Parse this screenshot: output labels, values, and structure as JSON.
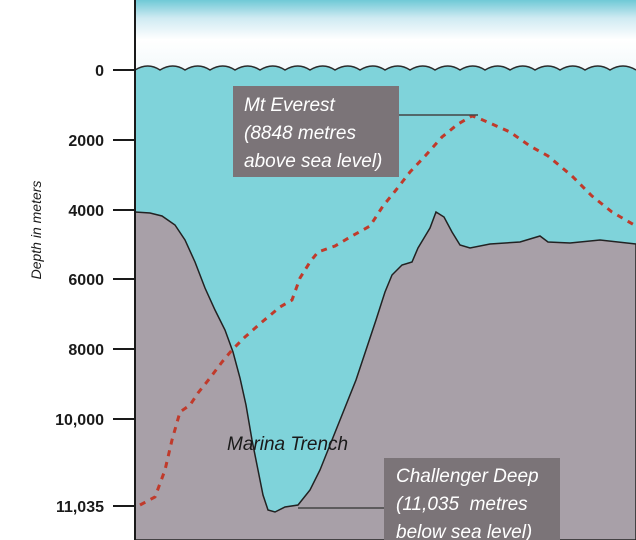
{
  "axis": {
    "title": "Depth in meters",
    "ticks": [
      "0",
      "2000",
      "4000",
      "6000",
      "8000",
      "10,000",
      "11,035"
    ]
  },
  "everest": {
    "lines": [
      "Mt Everest",
      "(8848 metres",
      "above sea level)"
    ]
  },
  "trench": {
    "label": "Marina Trench"
  },
  "challenger": {
    "lines": [
      "Challenger Deep",
      "(11,035  metres",
      "below sea level)"
    ]
  },
  "colors": {
    "sky": "#dfeff5",
    "water": "#7fd3da",
    "seabed": "#a8a0a8",
    "callout_box": "#7b7478",
    "everest_line": "#c03a2b",
    "axis": "#1a1a1a"
  }
}
